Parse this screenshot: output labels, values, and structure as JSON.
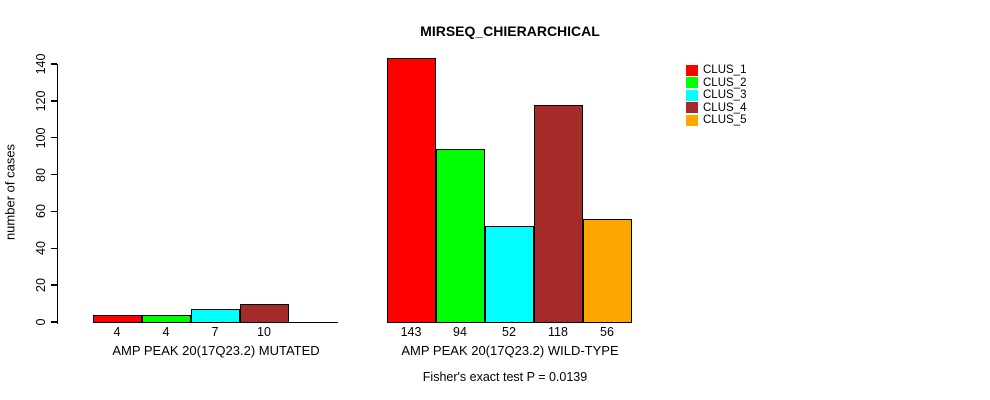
{
  "chart_data": {
    "type": "bar",
    "title": "MIRSEQ_CHIERARCHICAL",
    "ylabel": "number of cases",
    "xlabel": "",
    "ylim": [
      0,
      140
    ],
    "yticks": [
      0,
      20,
      40,
      60,
      80,
      100,
      120,
      140
    ],
    "grid": false,
    "legend_position": "right",
    "categories": [
      "CLUS_1",
      "CLUS_2",
      "CLUS_3",
      "CLUS_4",
      "CLUS_5"
    ],
    "colors": {
      "CLUS_1": "#ff0000",
      "CLUS_2": "#00ff00",
      "CLUS_3": "#00ffff",
      "CLUS_4": "#a52a2a",
      "CLUS_5": "#ffa500"
    },
    "groups": [
      {
        "label": "AMP PEAK 20(17Q23.2) MUTATED",
        "values": [
          4,
          4,
          7,
          10,
          0
        ],
        "bar_labels": [
          "4",
          "4",
          "7",
          "10",
          ""
        ]
      },
      {
        "label": "AMP PEAK 20(17Q23.2) WILD-TYPE",
        "values": [
          143,
          94,
          52,
          118,
          56
        ],
        "bar_labels": [
          "143",
          "94",
          "52",
          "118",
          "56"
        ]
      }
    ],
    "annotation": "Fisher's exact test P = 0.0139"
  }
}
